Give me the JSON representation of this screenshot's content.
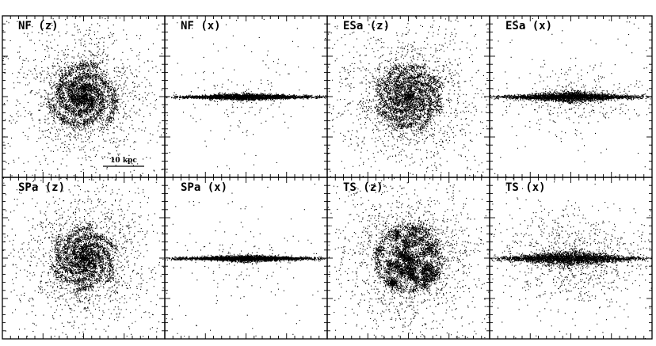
{
  "figure": {
    "panels": [
      {
        "id": "nf-z",
        "label": "NF (z)",
        "view": "face-on",
        "morphology": "grand-design-spiral"
      },
      {
        "id": "nf-x",
        "label": "NF (x)",
        "view": "edge-on",
        "morphology": "thin-disk"
      },
      {
        "id": "esa-z",
        "label": "ESa (z)",
        "view": "face-on",
        "morphology": "flocculent-spiral"
      },
      {
        "id": "esa-x",
        "label": "ESa (x)",
        "view": "edge-on",
        "morphology": "thickened-disk"
      },
      {
        "id": "spa-z",
        "label": "SPa (z)",
        "view": "face-on",
        "morphology": "multi-arm-spiral"
      },
      {
        "id": "spa-x",
        "label": "SPa (x)",
        "view": "edge-on",
        "morphology": "thin-disk"
      },
      {
        "id": "ts-z",
        "label": "TS (z)",
        "view": "face-on",
        "morphology": "clumpy-disk"
      },
      {
        "id": "ts-x",
        "label": "TS (x)",
        "view": "edge-on",
        "morphology": "thick-disk-with-halo"
      }
    ],
    "scale_bar": {
      "label": "10 kpc"
    },
    "colors": {
      "ink": "#000000",
      "background": "#ffffff"
    }
  }
}
